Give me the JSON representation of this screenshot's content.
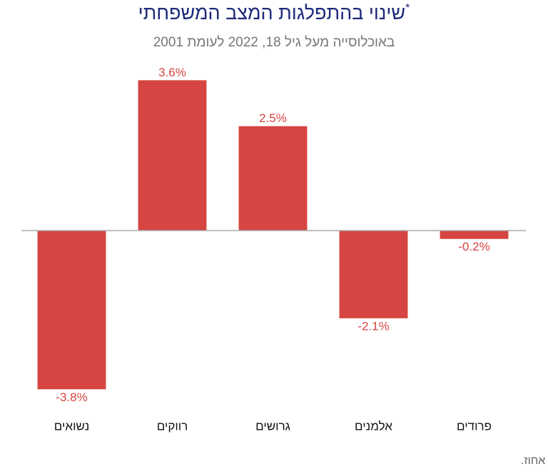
{
  "chart_data": {
    "type": "bar",
    "title": "שינוי בהתפלגות המצב המשפחתי",
    "title_mark": "*",
    "subtitle": "באוכלוסייה מעל גיל 18, 2022 לעומת 2001",
    "categories": [
      "נשואים",
      "רווקים",
      "גרושים",
      "אלמנים",
      "פרודים"
    ],
    "values": [
      -3.8,
      3.6,
      2.5,
      -2.1,
      -0.2
    ],
    "value_labels": [
      "-3.8%",
      "3.6%",
      "2.5%",
      "-2.1%",
      "-0.2%"
    ],
    "color": "#d64541",
    "ylim": [
      -4,
      4
    ],
    "footnote_mark": "*",
    "footnote": "שינוי בנקודות אחוז."
  }
}
